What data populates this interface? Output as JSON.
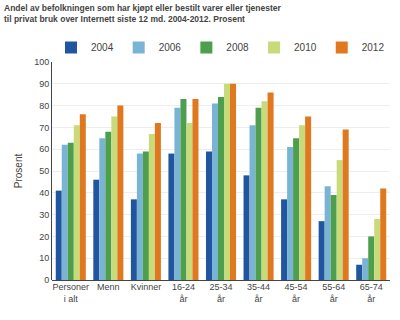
{
  "chart_data": {
    "type": "bar",
    "title": "Andel av befolkningen som har kjøpt eller bestilt varer eller tjenester\ntil privat bruk over Internett siste 12 md. 2004-2012. Prosent",
    "ylabel": "Prosent",
    "categories": [
      "Personer\ni alt",
      "Menn",
      "Kvinner",
      "16-24\når",
      "25-34\når",
      "35-44\når",
      "45-54\når",
      "55-64\når",
      "65-74\når"
    ],
    "series": [
      {
        "name": "2004",
        "color": "#2155a0",
        "values": [
          41,
          46,
          37,
          58,
          59,
          48,
          37,
          27,
          7
        ]
      },
      {
        "name": "2006",
        "color": "#7ab4d4",
        "values": [
          62,
          65,
          58,
          79,
          81,
          71,
          61,
          43,
          10
        ]
      },
      {
        "name": "2008",
        "color": "#4d9e4d",
        "values": [
          63,
          68,
          59,
          83,
          84,
          79,
          65,
          39,
          20
        ]
      },
      {
        "name": "2010",
        "color": "#c8db7a",
        "values": [
          71,
          75,
          67,
          72,
          90,
          82,
          71,
          55,
          28
        ]
      },
      {
        "name": "2012",
        "color": "#e07820",
        "values": [
          76,
          80,
          72,
          83,
          90,
          86,
          75,
          69,
          42
        ]
      }
    ],
    "ylim": [
      0,
      100
    ],
    "yticks": [
      0,
      10,
      20,
      30,
      40,
      50,
      60,
      70,
      80,
      90,
      100
    ],
    "grid": true,
    "legend": "upper right"
  }
}
